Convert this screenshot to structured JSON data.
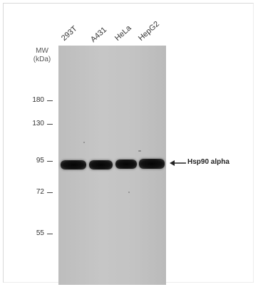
{
  "lanes": [
    "293T",
    "A431",
    "HeLa",
    "HepG2"
  ],
  "mw_title_line1": "MW",
  "mw_title_line2": "(kDa)",
  "markers": [
    "180",
    "130",
    "95",
    "72",
    "55"
  ],
  "target": {
    "arrow_icon": "left-arrow-icon",
    "label": "Hsp90 alpha"
  }
}
